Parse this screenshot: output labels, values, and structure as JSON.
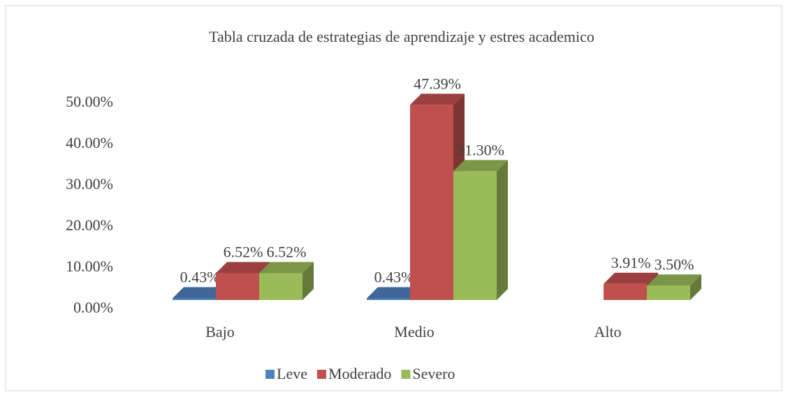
{
  "chart_data": {
    "type": "bar3d",
    "title": "Tabla cruzada de estrategias de aprendizaje y estres academico",
    "categories": [
      "Bajo",
      "Medio",
      "Alto"
    ],
    "series": [
      {
        "name": "Leve",
        "color": "#4f81bd",
        "values": [
          0.43,
          0.43,
          null
        ],
        "value_labels": [
          "0.43%",
          "0.43%",
          null
        ]
      },
      {
        "name": "Moderado",
        "color": "#c0504d",
        "values": [
          6.52,
          47.39,
          3.91
        ],
        "value_labels": [
          "6.52%",
          "47.39%",
          "3.91%"
        ]
      },
      {
        "name": "Severo",
        "color": "#9bbb59",
        "values": [
          6.52,
          31.3,
          3.5
        ],
        "value_labels": [
          "6.52%",
          "31.30%",
          "3.50%"
        ]
      }
    ],
    "ylim": [
      0,
      50
    ],
    "yticks": [
      {
        "value": 0,
        "label": "0.00%"
      },
      {
        "value": 10,
        "label": "10.00%"
      },
      {
        "value": 20,
        "label": "20.00%"
      },
      {
        "value": 30,
        "label": "30.00%"
      },
      {
        "value": 40,
        "label": "40.00%"
      },
      {
        "value": 50,
        "label": "50.00%"
      }
    ],
    "legend": "bottom"
  }
}
